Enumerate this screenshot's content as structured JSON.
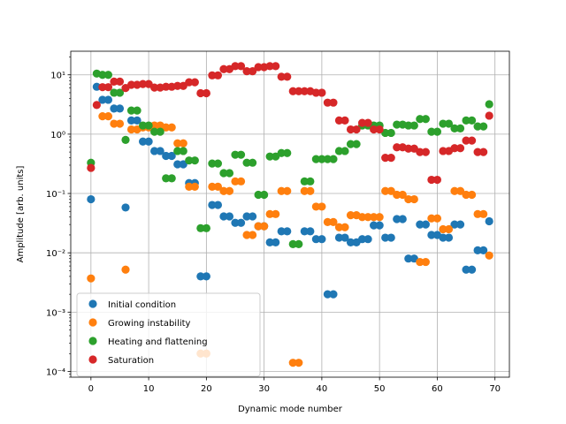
{
  "chart_data": {
    "type": "scatter",
    "title": "",
    "xlabel": "Dynamic mode number",
    "ylabel": "Amplitude [arb. units]",
    "xlim": [
      -3.5,
      72.5
    ],
    "ylim": [
      8e-05,
      25
    ],
    "yscale": "log",
    "grid": true,
    "legend_position": "lower-left",
    "x_ticks": [
      0,
      10,
      20,
      30,
      40,
      50,
      60,
      70
    ],
    "x_tick_labels": [
      "0",
      "10",
      "20",
      "30",
      "40",
      "50",
      "60",
      "70"
    ],
    "y_ticks": [
      0.0001,
      0.001,
      0.01,
      0.1,
      1,
      10
    ],
    "y_tick_labels": [
      "10⁻⁴",
      "10⁻³",
      "10⁻²",
      "10⁻¹",
      "10⁰",
      "10¹"
    ],
    "series": [
      {
        "name": "Initial condition",
        "color": "#1f77b4",
        "points": [
          [
            0,
            0.08
          ],
          [
            1,
            6.3
          ],
          [
            2,
            3.8
          ],
          [
            3,
            3.8
          ],
          [
            4,
            2.7
          ],
          [
            5,
            2.7
          ],
          [
            6,
            0.058
          ],
          [
            7,
            1.7
          ],
          [
            8,
            1.7
          ],
          [
            9,
            0.75
          ],
          [
            10,
            0.75
          ],
          [
            11,
            0.52
          ],
          [
            12,
            0.52
          ],
          [
            13,
            0.43
          ],
          [
            14,
            0.43
          ],
          [
            15,
            0.31
          ],
          [
            16,
            0.31
          ],
          [
            17,
            0.15
          ],
          [
            18,
            0.15
          ],
          [
            19,
            0.004
          ],
          [
            20,
            0.004
          ],
          [
            21,
            0.064
          ],
          [
            22,
            0.064
          ],
          [
            23,
            0.041
          ],
          [
            24,
            0.041
          ],
          [
            25,
            0.032
          ],
          [
            26,
            0.032
          ],
          [
            27,
            0.041
          ],
          [
            28,
            0.041
          ],
          [
            29,
            0.028
          ],
          [
            30,
            0.028
          ],
          [
            31,
            0.015
          ],
          [
            32,
            0.015
          ],
          [
            33,
            0.023
          ],
          [
            34,
            0.023
          ],
          [
            37,
            0.023
          ],
          [
            38,
            0.023
          ],
          [
            39,
            0.017
          ],
          [
            40,
            0.017
          ],
          [
            41,
            0.002
          ],
          [
            42,
            0.002
          ],
          [
            43,
            0.018
          ],
          [
            44,
            0.018
          ],
          [
            45,
            0.015
          ],
          [
            46,
            0.015
          ],
          [
            47,
            0.017
          ],
          [
            48,
            0.017
          ],
          [
            49,
            0.029
          ],
          [
            50,
            0.029
          ],
          [
            51,
            0.018
          ],
          [
            52,
            0.018
          ],
          [
            53,
            0.037
          ],
          [
            54,
            0.037
          ],
          [
            55,
            0.008
          ],
          [
            56,
            0.008
          ],
          [
            57,
            0.03
          ],
          [
            58,
            0.03
          ],
          [
            59,
            0.02
          ],
          [
            60,
            0.02
          ],
          [
            61,
            0.018
          ],
          [
            62,
            0.018
          ],
          [
            63,
            0.03
          ],
          [
            64,
            0.03
          ],
          [
            65,
            0.0052
          ],
          [
            66,
            0.0052
          ],
          [
            67,
            0.011
          ],
          [
            68,
            0.011
          ],
          [
            69,
            0.034
          ]
        ]
      },
      {
        "name": "Growing instability",
        "color": "#ff7f0e",
        "points": [
          [
            0,
            0.0037
          ],
          [
            2,
            2.0
          ],
          [
            3,
            2.0
          ],
          [
            4,
            1.5
          ],
          [
            5,
            1.5
          ],
          [
            6,
            0.0052
          ],
          [
            7,
            1.2
          ],
          [
            8,
            1.2
          ],
          [
            9,
            1.3
          ],
          [
            10,
            1.3
          ],
          [
            11,
            1.4
          ],
          [
            12,
            1.4
          ],
          [
            13,
            1.3
          ],
          [
            14,
            1.3
          ],
          [
            15,
            0.7
          ],
          [
            16,
            0.7
          ],
          [
            17,
            0.13
          ],
          [
            18,
            0.13
          ],
          [
            19,
            0.0002
          ],
          [
            20,
            0.0002
          ],
          [
            21,
            0.13
          ],
          [
            22,
            0.13
          ],
          [
            23,
            0.11
          ],
          [
            24,
            0.11
          ],
          [
            25,
            0.16
          ],
          [
            26,
            0.16
          ],
          [
            27,
            0.02
          ],
          [
            28,
            0.02
          ],
          [
            29,
            0.028
          ],
          [
            30,
            0.028
          ],
          [
            31,
            0.045
          ],
          [
            32,
            0.045
          ],
          [
            33,
            0.11
          ],
          [
            34,
            0.11
          ],
          [
            35,
            0.00014
          ],
          [
            36,
            0.00014
          ],
          [
            37,
            0.11
          ],
          [
            38,
            0.11
          ],
          [
            39,
            0.06
          ],
          [
            40,
            0.06
          ],
          [
            41,
            0.033
          ],
          [
            42,
            0.033
          ],
          [
            43,
            0.027
          ],
          [
            44,
            0.027
          ],
          [
            45,
            0.043
          ],
          [
            46,
            0.043
          ],
          [
            47,
            0.04
          ],
          [
            48,
            0.04
          ],
          [
            49,
            0.04
          ],
          [
            50,
            0.04
          ],
          [
            51,
            0.11
          ],
          [
            52,
            0.11
          ],
          [
            53,
            0.095
          ],
          [
            54,
            0.095
          ],
          [
            55,
            0.08
          ],
          [
            56,
            0.08
          ],
          [
            57,
            0.007
          ],
          [
            58,
            0.007
          ],
          [
            59,
            0.038
          ],
          [
            60,
            0.038
          ],
          [
            61,
            0.025
          ],
          [
            62,
            0.025
          ],
          [
            63,
            0.11
          ],
          [
            64,
            0.11
          ],
          [
            65,
            0.095
          ],
          [
            66,
            0.095
          ],
          [
            67,
            0.045
          ],
          [
            68,
            0.045
          ],
          [
            69,
            0.009
          ]
        ]
      },
      {
        "name": "Heating and flattening",
        "color": "#2ca02c",
        "points": [
          [
            0,
            0.33
          ],
          [
            1,
            10.5
          ],
          [
            2,
            10.0
          ],
          [
            3,
            10.0
          ],
          [
            4,
            5.0
          ],
          [
            5,
            5.0
          ],
          [
            6,
            0.8
          ],
          [
            7,
            2.5
          ],
          [
            8,
            2.5
          ],
          [
            9,
            1.4
          ],
          [
            10,
            1.4
          ],
          [
            11,
            1.1
          ],
          [
            12,
            1.1
          ],
          [
            13,
            0.18
          ],
          [
            14,
            0.18
          ],
          [
            15,
            0.52
          ],
          [
            16,
            0.52
          ],
          [
            17,
            0.36
          ],
          [
            18,
            0.36
          ],
          [
            19,
            0.026
          ],
          [
            20,
            0.026
          ],
          [
            21,
            0.32
          ],
          [
            22,
            0.32
          ],
          [
            23,
            0.22
          ],
          [
            24,
            0.22
          ],
          [
            25,
            0.45
          ],
          [
            26,
            0.45
          ],
          [
            27,
            0.33
          ],
          [
            28,
            0.33
          ],
          [
            29,
            0.095
          ],
          [
            30,
            0.095
          ],
          [
            31,
            0.42
          ],
          [
            32,
            0.42
          ],
          [
            33,
            0.48
          ],
          [
            34,
            0.48
          ],
          [
            35,
            0.014
          ],
          [
            36,
            0.014
          ],
          [
            37,
            0.16
          ],
          [
            38,
            0.16
          ],
          [
            39,
            0.38
          ],
          [
            40,
            0.38
          ],
          [
            41,
            0.38
          ],
          [
            42,
            0.38
          ],
          [
            43,
            0.52
          ],
          [
            44,
            0.52
          ],
          [
            45,
            0.68
          ],
          [
            46,
            0.68
          ],
          [
            47,
            1.4
          ],
          [
            48,
            1.4
          ],
          [
            49,
            1.4
          ],
          [
            50,
            1.4
          ],
          [
            51,
            1.05
          ],
          [
            52,
            1.05
          ],
          [
            53,
            1.45
          ],
          [
            54,
            1.45
          ],
          [
            55,
            1.4
          ],
          [
            56,
            1.4
          ],
          [
            57,
            1.8
          ],
          [
            58,
            1.8
          ],
          [
            59,
            1.1
          ],
          [
            60,
            1.1
          ],
          [
            61,
            1.5
          ],
          [
            62,
            1.5
          ],
          [
            63,
            1.25
          ],
          [
            64,
            1.25
          ],
          [
            65,
            1.7
          ],
          [
            66,
            1.7
          ],
          [
            67,
            1.35
          ],
          [
            68,
            1.35
          ],
          [
            69,
            3.2
          ]
        ]
      },
      {
        "name": "Saturation",
        "color": "#d62728",
        "points": [
          [
            0,
            0.27
          ],
          [
            1,
            3.1
          ],
          [
            2,
            6.2
          ],
          [
            3,
            6.2
          ],
          [
            4,
            7.7
          ],
          [
            5,
            7.7
          ],
          [
            6,
            6.0
          ],
          [
            7,
            6.8
          ],
          [
            8,
            6.8
          ],
          [
            9,
            7.0
          ],
          [
            10,
            7.0
          ],
          [
            11,
            6.1
          ],
          [
            12,
            6.1
          ],
          [
            13,
            6.3
          ],
          [
            14,
            6.3
          ],
          [
            15,
            6.5
          ],
          [
            16,
            6.5
          ],
          [
            17,
            7.5
          ],
          [
            18,
            7.5
          ],
          [
            19,
            4.9
          ],
          [
            20,
            4.9
          ],
          [
            21,
            9.8
          ],
          [
            22,
            9.8
          ],
          [
            23,
            12.5
          ],
          [
            24,
            12.5
          ],
          [
            25,
            14.0
          ],
          [
            26,
            14.0
          ],
          [
            27,
            11.5
          ],
          [
            28,
            11.5
          ],
          [
            29,
            13.5
          ],
          [
            30,
            13.5
          ],
          [
            31,
            14.0
          ],
          [
            32,
            14.0
          ],
          [
            33,
            9.3
          ],
          [
            34,
            9.3
          ],
          [
            35,
            5.3
          ],
          [
            36,
            5.3
          ],
          [
            37,
            5.3
          ],
          [
            38,
            5.3
          ],
          [
            39,
            5.0
          ],
          [
            40,
            5.0
          ],
          [
            41,
            3.4
          ],
          [
            42,
            3.4
          ],
          [
            43,
            1.7
          ],
          [
            44,
            1.7
          ],
          [
            45,
            1.2
          ],
          [
            46,
            1.2
          ],
          [
            47,
            1.55
          ],
          [
            48,
            1.55
          ],
          [
            49,
            1.2
          ],
          [
            50,
            1.2
          ],
          [
            51,
            0.4
          ],
          [
            52,
            0.4
          ],
          [
            53,
            0.6
          ],
          [
            54,
            0.6
          ],
          [
            55,
            0.57
          ],
          [
            56,
            0.57
          ],
          [
            57,
            0.5
          ],
          [
            58,
            0.5
          ],
          [
            59,
            0.17
          ],
          [
            60,
            0.17
          ],
          [
            61,
            0.52
          ],
          [
            62,
            0.52
          ],
          [
            63,
            0.58
          ],
          [
            64,
            0.58
          ],
          [
            65,
            0.78
          ],
          [
            66,
            0.78
          ],
          [
            67,
            0.5
          ],
          [
            68,
            0.5
          ],
          [
            69,
            2.05
          ]
        ]
      }
    ]
  }
}
